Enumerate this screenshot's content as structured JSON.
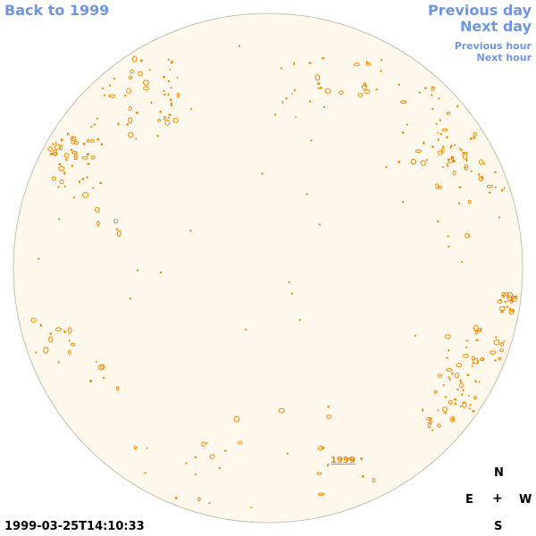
{
  "nav": {
    "back": "Back to 1999",
    "previous_day": "Previous day",
    "next_day": "Next day",
    "previous_hour": "Previous hour",
    "next_hour": "Next hour"
  },
  "compass": {
    "n": "N",
    "e": "E",
    "center": "+",
    "w": "W",
    "s": "S"
  },
  "timestamp": "1999-03-25T14:10:33",
  "year_label": "1999",
  "colors": {
    "disk_fill": "#fff8ec",
    "disk_stroke": "#c9bfae",
    "feature": "#f08a00",
    "link": "#6f96df"
  }
}
